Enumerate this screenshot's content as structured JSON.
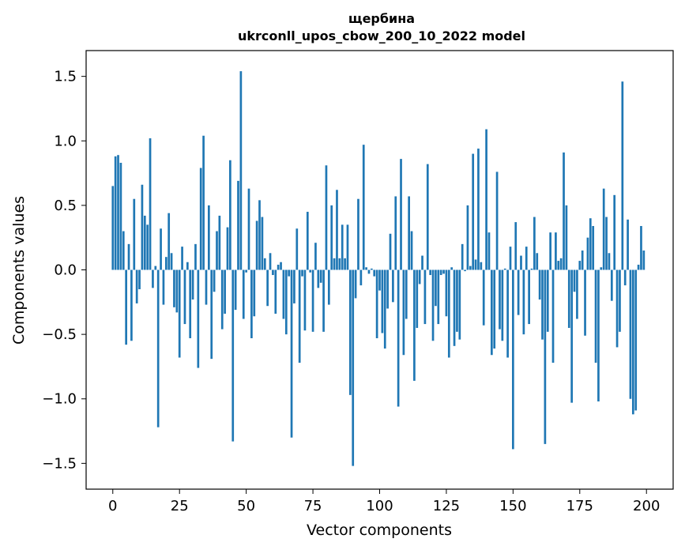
{
  "chart_data": {
    "type": "bar",
    "title_line1": "щербина",
    "title_line2": "ukrconll_upos_cbow_200_10_2022 model",
    "xlabel": "Vector components",
    "ylabel": "Components values",
    "xlim": [
      -10,
      210
    ],
    "ylim": [
      -1.7,
      1.7
    ],
    "xticks": [
      0,
      25,
      50,
      75,
      100,
      125,
      150,
      175,
      200
    ],
    "xtick_labels": [
      "0",
      "25",
      "50",
      "75",
      "100",
      "125",
      "150",
      "175",
      "200"
    ],
    "yticks": [
      -1.5,
      -1.0,
      -0.5,
      0.0,
      0.5,
      1.0,
      1.5
    ],
    "ytick_labels": [
      "−1.5",
      "−1.0",
      "−0.5",
      "0.0",
      "0.5",
      "1.0",
      "1.5"
    ],
    "bar_color": "#1f77b4",
    "values": [
      0.65,
      0.88,
      0.89,
      0.83,
      0.3,
      -0.58,
      0.2,
      -0.55,
      0.55,
      -0.26,
      -0.15,
      0.66,
      0.42,
      0.35,
      1.02,
      -0.14,
      0.03,
      -1.22,
      0.32,
      -0.27,
      0.1,
      0.44,
      0.13,
      -0.29,
      -0.33,
      -0.68,
      0.18,
      -0.42,
      0.06,
      -0.53,
      -0.23,
      0.2,
      -0.76,
      0.79,
      1.04,
      -0.27,
      0.5,
      -0.69,
      -0.17,
      0.3,
      0.42,
      -0.46,
      -0.34,
      0.33,
      0.85,
      -1.33,
      -0.31,
      0.69,
      1.54,
      -0.38,
      -0.02,
      0.63,
      -0.53,
      -0.36,
      0.38,
      0.54,
      0.41,
      0.09,
      -0.28,
      0.13,
      -0.04,
      -0.34,
      0.04,
      0.06,
      -0.38,
      -0.5,
      -0.05,
      -1.3,
      -0.26,
      0.32,
      -0.72,
      -0.05,
      -0.47,
      0.45,
      -0.02,
      -0.48,
      0.21,
      -0.14,
      -0.1,
      -0.48,
      0.81,
      -0.27,
      0.5,
      0.09,
      0.62,
      0.09,
      0.35,
      0.09,
      0.35,
      -0.97,
      -1.52,
      -0.22,
      0.55,
      -0.12,
      0.97,
      0.02,
      -0.03,
      0.01,
      -0.05,
      -0.53,
      -0.16,
      -0.49,
      -0.61,
      -0.3,
      0.28,
      -0.25,
      0.57,
      -1.06,
      0.86,
      -0.66,
      -0.38,
      0.57,
      0.3,
      -0.86,
      -0.45,
      -0.11,
      0.11,
      -0.42,
      0.82,
      -0.04,
      -0.55,
      -0.28,
      -0.42,
      -0.04,
      -0.03,
      -0.36,
      -0.68,
      0.02,
      -0.59,
      -0.48,
      -0.54,
      0.2,
      -0.01,
      0.5,
      0.03,
      0.9,
      0.08,
      0.94,
      0.06,
      -0.43,
      1.09,
      0.29,
      -0.66,
      -0.61,
      0.76,
      -0.46,
      -0.55,
      0.01,
      -0.68,
      0.18,
      -1.39,
      0.37,
      -0.35,
      0.11,
      -0.5,
      0.18,
      -0.42,
      0.01,
      0.41,
      0.13,
      -0.23,
      -0.54,
      -1.35,
      -0.48,
      0.29,
      -0.72,
      0.29,
      0.07,
      0.09,
      0.91,
      0.5,
      -0.45,
      -1.03,
      -0.17,
      -0.38,
      0.07,
      0.15,
      -0.51,
      0.25,
      0.4,
      0.34,
      -0.72,
      -1.02,
      0.02,
      0.63,
      0.41,
      0.13,
      -0.24,
      0.58,
      -0.6,
      -0.48,
      1.46,
      -0.12,
      0.39,
      -1.0,
      -1.12,
      -1.09,
      0.04,
      0.34,
      0.15
    ]
  }
}
